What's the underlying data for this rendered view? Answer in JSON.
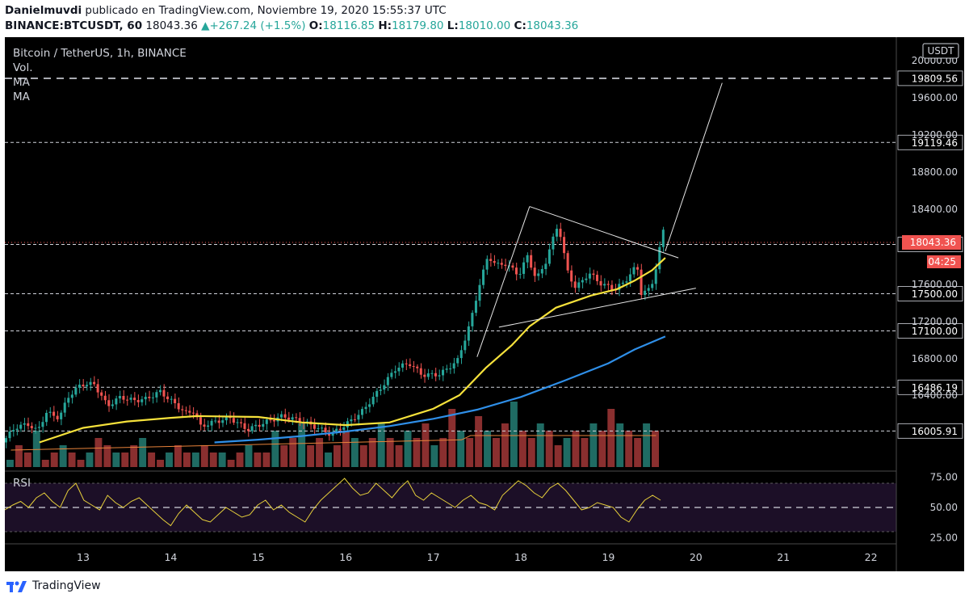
{
  "header": {
    "author": "Danielmuvdi",
    "published": " publicado en TradingView.com, Noviembre 19, 2020 15:55:37 UTC",
    "symbol": "BINANCE:BTCUSDT, 60",
    "last": "18043.36",
    "change": "▲+267.24 (+1.5%)",
    "o_label": "O:",
    "o_val": "18116.85",
    "h_label": "H:",
    "h_val": "18179.80",
    "l_label": "L:",
    "l_val": "18010.00",
    "c_label": "C:",
    "c_val": "18043.36"
  },
  "legend": {
    "title": "Bitcoin / TetherUS, 1h, BINANCE",
    "vol": "Vol.",
    "ma1": "MA",
    "ma2": "MA",
    "rsi": "RSI"
  },
  "price_axis": {
    "currency": "USDT",
    "current_price": "18043.36",
    "countdown": "04:25"
  },
  "footer": {
    "brand": "TradingView"
  },
  "colors": {
    "up": "#26a69a",
    "down": "#ef5350",
    "ma_yellow": "#f5e13b",
    "ma_blue": "#2f8fe8",
    "vol_ma": "#e8823a",
    "rsi_line": "#e6cf3b",
    "rsi_band": "#1c0f27",
    "price_label": "#f05350"
  },
  "chart_data": [
    {
      "type": "candlestick",
      "title": "Bitcoin / TetherUS, 1h, BINANCE",
      "x_ticks": [
        "13",
        "14",
        "15",
        "16",
        "17",
        "18",
        "19",
        "20",
        "21",
        "22"
      ],
      "y_ticks": [
        16400,
        16800,
        17200,
        17600,
        18000,
        18400,
        18800,
        19200,
        19600,
        20000
      ],
      "ylim": [
        15880,
        20100
      ],
      "horizontal_levels": [
        16005.91,
        16486.19,
        17100.0,
        17500.0,
        18021.71,
        19119.46,
        19809.56
      ],
      "current_price": 18043.36,
      "price_path": [
        [
          12.1,
          15880
        ],
        [
          12.25,
          16050
        ],
        [
          12.4,
          16080
        ],
        [
          12.5,
          16000
        ],
        [
          12.6,
          16210
        ],
        [
          12.75,
          16150
        ],
        [
          12.85,
          16380
        ],
        [
          13.0,
          16520
        ],
        [
          13.15,
          16520
        ],
        [
          13.3,
          16280
        ],
        [
          13.45,
          16380
        ],
        [
          13.6,
          16340
        ],
        [
          13.75,
          16360
        ],
        [
          13.9,
          16440
        ],
        [
          14.05,
          16320
        ],
        [
          14.2,
          16200
        ],
        [
          14.3,
          16230
        ],
        [
          14.35,
          16050
        ],
        [
          14.5,
          16100
        ],
        [
          14.7,
          16150
        ],
        [
          14.9,
          16020
        ],
        [
          15.1,
          16100
        ],
        [
          15.3,
          16170
        ],
        [
          15.5,
          16120
        ],
        [
          15.7,
          16040
        ],
        [
          15.85,
          15970
        ],
        [
          16.0,
          16060
        ],
        [
          16.2,
          16210
        ],
        [
          16.4,
          16450
        ],
        [
          16.6,
          16700
        ],
        [
          16.75,
          16750
        ],
        [
          16.9,
          16620
        ],
        [
          17.1,
          16630
        ],
        [
          17.3,
          16780
        ],
        [
          17.45,
          17200
        ],
        [
          17.55,
          17600
        ],
        [
          17.65,
          17900
        ],
        [
          17.75,
          17800
        ],
        [
          17.85,
          17820
        ],
        [
          18.0,
          17700
        ],
        [
          18.1,
          17900
        ],
        [
          18.2,
          17650
        ],
        [
          18.3,
          17820
        ],
        [
          18.45,
          18250
        ],
        [
          18.55,
          17750
        ],
        [
          18.65,
          17560
        ],
        [
          18.8,
          17720
        ],
        [
          18.95,
          17600
        ],
        [
          19.1,
          17550
        ],
        [
          19.2,
          17620
        ],
        [
          19.35,
          17800
        ],
        [
          19.4,
          17500
        ],
        [
          19.5,
          17550
        ],
        [
          19.55,
          17700
        ],
        [
          19.65,
          18170
        ]
      ],
      "ma_yellow": [
        [
          12.5,
          15880
        ],
        [
          13.0,
          16040
        ],
        [
          13.5,
          16110
        ],
        [
          14.0,
          16150
        ],
        [
          14.3,
          16170
        ],
        [
          15.0,
          16160
        ],
        [
          15.5,
          16100
        ],
        [
          16.0,
          16070
        ],
        [
          16.5,
          16100
        ],
        [
          17.0,
          16250
        ],
        [
          17.3,
          16400
        ],
        [
          17.6,
          16700
        ],
        [
          17.9,
          16950
        ],
        [
          18.1,
          17150
        ],
        [
          18.4,
          17350
        ],
        [
          18.8,
          17480
        ],
        [
          19.1,
          17550
        ],
        [
          19.3,
          17640
        ],
        [
          19.5,
          17750
        ],
        [
          19.65,
          17880
        ]
      ],
      "ma_blue": [
        [
          14.5,
          15880
        ],
        [
          15.0,
          15910
        ],
        [
          15.5,
          15950
        ],
        [
          16.0,
          16000
        ],
        [
          16.5,
          16060
        ],
        [
          17.0,
          16140
        ],
        [
          17.5,
          16240
        ],
        [
          18.0,
          16380
        ],
        [
          18.5,
          16560
        ],
        [
          19.0,
          16750
        ],
        [
          19.3,
          16900
        ],
        [
          19.65,
          17040
        ]
      ],
      "pattern_lines": [
        {
          "from": [
            17.5,
            16820
          ],
          "to": [
            18.1,
            18430
          ]
        },
        {
          "from": [
            18.1,
            18430
          ],
          "to": [
            19.8,
            17880
          ]
        },
        {
          "from": [
            17.75,
            17140
          ],
          "to": [
            20.0,
            17560
          ]
        },
        {
          "from": [
            19.65,
            17950
          ],
          "to": [
            20.3,
            19760
          ]
        }
      ],
      "volume": [
        1,
        3,
        2,
        5,
        1,
        2,
        3,
        2,
        1,
        2,
        4,
        3,
        2,
        2,
        3,
        4,
        2,
        1,
        2,
        3,
        2,
        2,
        3,
        2,
        2,
        1,
        2,
        3,
        2,
        2,
        5,
        3,
        4,
        6,
        3,
        4,
        2,
        3,
        5,
        4,
        3,
        4,
        6,
        4,
        3,
        5,
        4,
        6,
        3,
        4,
        8,
        5,
        4,
        7,
        5,
        4,
        6,
        9,
        5,
        4,
        6,
        5,
        3,
        4,
        5,
        4,
        6,
        5,
        8,
        6,
        5,
        4,
        6,
        5
      ]
    },
    {
      "type": "line",
      "title": "RSI",
      "y_ticks": [
        25.0,
        50.0,
        75.0
      ],
      "ylim": [
        20,
        80
      ],
      "band": [
        30,
        70
      ],
      "values": [
        48,
        52,
        55,
        50,
        58,
        62,
        55,
        50,
        64,
        70,
        56,
        52,
        48,
        60,
        54,
        50,
        55,
        58,
        52,
        46,
        40,
        35,
        45,
        52,
        46,
        40,
        38,
        44,
        50,
        46,
        42,
        44,
        52,
        56,
        48,
        52,
        46,
        42,
        38,
        48,
        56,
        62,
        68,
        74,
        66,
        60,
        62,
        70,
        64,
        58,
        66,
        72,
        60,
        56,
        62,
        58,
        54,
        50,
        56,
        60,
        54,
        52,
        48,
        60,
        66,
        72,
        68,
        62,
        58,
        66,
        70,
        64,
        56,
        48,
        50,
        54,
        52,
        50,
        42,
        38,
        48,
        56,
        60,
        56
      ]
    }
  ]
}
